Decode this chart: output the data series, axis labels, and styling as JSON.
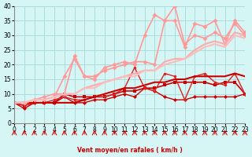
{
  "title": "",
  "xlabel": "Vent moyen/en rafales ( km/h )",
  "ylabel": "",
  "bg_color": "#d6f5f5",
  "grid_color": "#aadddd",
  "xlim": [
    0,
    23
  ],
  "ylim": [
    0,
    40
  ],
  "yticks": [
    0,
    5,
    10,
    15,
    20,
    25,
    30,
    35,
    40
  ],
  "xticks": [
    0,
    1,
    2,
    3,
    4,
    5,
    6,
    7,
    8,
    9,
    10,
    11,
    12,
    13,
    14,
    15,
    16,
    17,
    18,
    19,
    20,
    21,
    22,
    23
  ],
  "series": [
    {
      "x": [
        0,
        1,
        2,
        3,
        4,
        5,
        6,
        7,
        8,
        9,
        10,
        11,
        12,
        13,
        14,
        15,
        16,
        17,
        18,
        19,
        20,
        21,
        22,
        23
      ],
      "y": [
        7,
        5,
        7,
        7,
        7,
        9,
        7,
        7,
        8,
        8,
        9,
        10,
        9,
        12,
        11,
        9,
        8,
        8,
        9,
        9,
        9,
        9,
        9,
        10
      ],
      "color": "#cc0000",
      "lw": 1.0,
      "marker": "D",
      "ms": 2.5
    },
    {
      "x": [
        0,
        1,
        2,
        3,
        4,
        5,
        6,
        7,
        8,
        9,
        10,
        11,
        12,
        13,
        14,
        15,
        16,
        17,
        18,
        19,
        20,
        21,
        22,
        23
      ],
      "y": [
        7,
        6,
        7,
        7,
        7,
        10,
        9,
        9,
        9,
        9,
        10,
        11,
        11,
        12,
        12,
        13,
        14,
        14,
        14,
        14,
        13,
        14,
        14,
        10
      ],
      "color": "#cc0000",
      "lw": 1.2,
      "marker": "s",
      "ms": 2.5
    },
    {
      "x": [
        0,
        1,
        2,
        3,
        4,
        5,
        6,
        7,
        8,
        9,
        10,
        11,
        12,
        13,
        14,
        15,
        16,
        17,
        18,
        19,
        20,
        21,
        22,
        23
      ],
      "y": [
        7,
        6,
        7,
        7,
        8,
        9,
        8,
        8,
        9,
        9,
        10,
        12,
        19,
        12,
        11,
        17,
        16,
        8,
        16,
        17,
        14,
        13,
        17,
        10
      ],
      "color": "#dd2222",
      "lw": 1.0,
      "marker": "o",
      "ms": 2.5
    },
    {
      "x": [
        0,
        1,
        2,
        3,
        4,
        5,
        6,
        7,
        8,
        9,
        10,
        11,
        12,
        13,
        14,
        15,
        16,
        17,
        18,
        19,
        20,
        21,
        22,
        23
      ],
      "y": [
        7,
        7,
        7,
        7,
        7,
        7,
        7,
        8,
        9,
        10,
        11,
        12,
        12,
        13,
        14,
        14,
        15,
        15,
        16,
        16,
        16,
        16,
        17,
        16
      ],
      "color": "#cc0000",
      "lw": 1.5,
      "marker": null,
      "ms": 0
    },
    {
      "x": [
        0,
        1,
        2,
        3,
        4,
        5,
        6,
        7,
        8,
        9,
        10,
        11,
        12,
        13,
        14,
        15,
        16,
        17,
        18,
        19,
        20,
        21,
        22,
        23
      ],
      "y": [
        7,
        7,
        8,
        8,
        9,
        16,
        22,
        16,
        15,
        19,
        20,
        21,
        20,
        30,
        37,
        35,
        35,
        26,
        34,
        33,
        35,
        27,
        35,
        31
      ],
      "color": "#ff9999",
      "lw": 1.2,
      "marker": "D",
      "ms": 3
    },
    {
      "x": [
        0,
        1,
        2,
        3,
        4,
        5,
        6,
        7,
        8,
        9,
        10,
        11,
        12,
        13,
        14,
        15,
        16,
        17,
        18,
        19,
        20,
        21,
        22,
        23
      ],
      "y": [
        7,
        7,
        8,
        9,
        10,
        10,
        23,
        16,
        16,
        18,
        19,
        20,
        21,
        21,
        20,
        35,
        40,
        27,
        30,
        29,
        31,
        29,
        34,
        30
      ],
      "color": "#ff9999",
      "lw": 1.2,
      "marker": "D",
      "ms": 3
    },
    {
      "x": [
        0,
        1,
        2,
        3,
        4,
        5,
        6,
        7,
        8,
        9,
        10,
        11,
        12,
        13,
        14,
        15,
        16,
        17,
        18,
        19,
        20,
        21,
        22,
        23
      ],
      "y": [
        7,
        7,
        8,
        8,
        9,
        10,
        10,
        12,
        13,
        14,
        15,
        16,
        17,
        18,
        18,
        21,
        22,
        22,
        25,
        27,
        28,
        27,
        31,
        30
      ],
      "color": "#ffaaaa",
      "lw": 1.5,
      "marker": null,
      "ms": 0
    },
    {
      "x": [
        0,
        1,
        2,
        3,
        4,
        5,
        6,
        7,
        8,
        9,
        10,
        11,
        12,
        13,
        14,
        15,
        16,
        17,
        18,
        19,
        20,
        21,
        22,
        23
      ],
      "y": [
        7,
        7,
        8,
        8,
        9,
        10,
        10,
        12,
        12,
        14,
        15,
        16,
        16,
        18,
        18,
        20,
        21,
        22,
        24,
        26,
        27,
        26,
        30,
        29
      ],
      "color": "#ffbbbb",
      "lw": 1.5,
      "marker": null,
      "ms": 0
    }
  ],
  "arrow_color": "#cc0000"
}
